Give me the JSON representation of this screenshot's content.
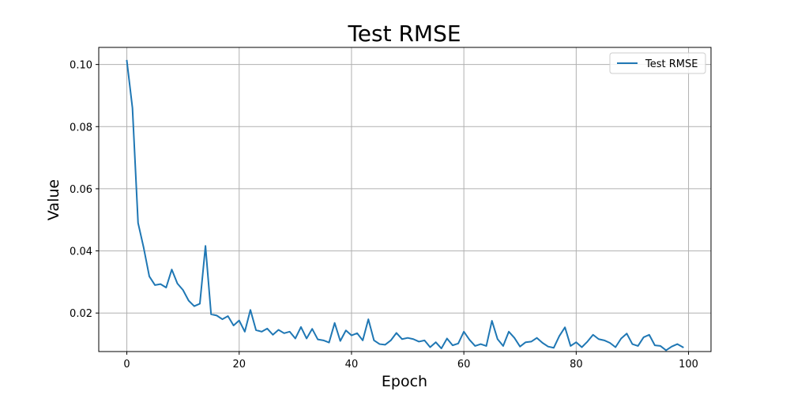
{
  "chart_data": {
    "type": "line",
    "title": "Test RMSE",
    "xlabel": "Epoch",
    "ylabel": "Value",
    "xlim": [
      -5,
      104
    ],
    "ylim": [
      0.0076,
      0.1055
    ],
    "xticks": [
      0,
      20,
      40,
      60,
      80,
      100
    ],
    "yticks": [
      0.02,
      0.04,
      0.06,
      0.08,
      0.1
    ],
    "ytick_labels": [
      "0.02",
      "0.04",
      "0.06",
      "0.08",
      "0.10"
    ],
    "grid": true,
    "legend_position": "top-right",
    "series": [
      {
        "name": "Test RMSE",
        "color": "#1f77b4",
        "x": [
          0,
          1,
          2,
          3,
          4,
          5,
          6,
          7,
          8,
          9,
          10,
          11,
          12,
          13,
          14,
          15,
          16,
          17,
          18,
          19,
          20,
          21,
          22,
          23,
          24,
          25,
          26,
          27,
          28,
          29,
          30,
          31,
          32,
          33,
          34,
          35,
          36,
          37,
          38,
          39,
          40,
          41,
          42,
          43,
          44,
          45,
          46,
          47,
          48,
          49,
          50,
          51,
          52,
          53,
          54,
          55,
          56,
          57,
          58,
          59,
          60,
          61,
          62,
          63,
          64,
          65,
          66,
          67,
          68,
          69,
          70,
          71,
          72,
          73,
          74,
          75,
          76,
          77,
          78,
          79,
          80,
          81,
          82,
          83,
          84,
          85,
          86,
          87,
          88,
          89,
          90,
          91,
          92,
          93,
          94,
          95,
          96,
          97,
          98,
          99
        ],
        "values": [
          0.1012,
          0.086,
          0.049,
          0.041,
          0.0318,
          0.029,
          0.0293,
          0.0282,
          0.034,
          0.0295,
          0.0274,
          0.024,
          0.0222,
          0.023,
          0.0416,
          0.0196,
          0.0192,
          0.018,
          0.019,
          0.016,
          0.0176,
          0.014,
          0.021,
          0.0145,
          0.014,
          0.015,
          0.013,
          0.0146,
          0.0135,
          0.014,
          0.0118,
          0.0155,
          0.0118,
          0.0149,
          0.0115,
          0.0112,
          0.0105,
          0.0168,
          0.011,
          0.0144,
          0.0128,
          0.0135,
          0.0112,
          0.018,
          0.0112,
          0.01,
          0.0098,
          0.0112,
          0.0136,
          0.0116,
          0.012,
          0.0116,
          0.0108,
          0.0112,
          0.009,
          0.0106,
          0.0086,
          0.0118,
          0.0096,
          0.0102,
          0.014,
          0.0114,
          0.0094,
          0.01,
          0.0094,
          0.0175,
          0.0116,
          0.0094,
          0.014,
          0.012,
          0.0092,
          0.0106,
          0.0108,
          0.012,
          0.0104,
          0.0092,
          0.0088,
          0.0126,
          0.0154,
          0.0094,
          0.0106,
          0.009,
          0.0108,
          0.013,
          0.0116,
          0.0112,
          0.0104,
          0.009,
          0.0118,
          0.0134,
          0.01,
          0.0094,
          0.0122,
          0.013,
          0.0096,
          0.0094,
          0.008,
          0.0092,
          0.01,
          0.009
        ]
      }
    ]
  }
}
